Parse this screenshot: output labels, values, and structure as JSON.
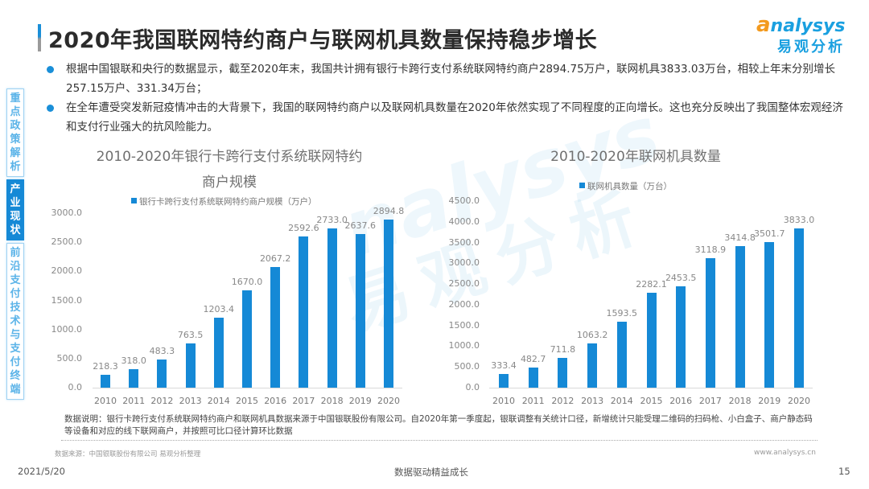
{
  "header": {
    "title": "2020年我国联网特约商户与联网机具数量保持稳步增长",
    "logo_en": "nalysys",
    "logo_en_prefix": "a",
    "logo_cn": "易观分析"
  },
  "bullets": [
    "根据中国银联和央行的数据显示，截至2020年末，我国共计拥有银行卡跨行支付系统联网特约商户2894.75万户，联网机具3833.03万台，相较上年末分别增长257.15万户、331.34万台；",
    "在全年遭受突发新冠疫情冲击的大背景下，我国的联网特约商户以及联网机具数量在2020年依然实现了不同程度的正向增长。这也充分反映出了我国整体宏观经济和支付行业强大的抗风险能力。"
  ],
  "sidenav": {
    "items": [
      {
        "label": "重点政策解析",
        "active": false
      },
      {
        "label": "产业现状",
        "active": true
      },
      {
        "label": "前沿支付技术与支付终端",
        "active": false
      }
    ]
  },
  "watermark": {
    "en": "nalysys",
    "cn": "易观分析"
  },
  "colors": {
    "bar": "#1589d6",
    "accent": "#1a8fd8",
    "logo_orange": "#f39a1e"
  },
  "chart_data": [
    {
      "type": "bar",
      "title": "2010-2020年银行卡跨行支付系统联网特约商户规模",
      "title_line1": "2010-2020年银行卡跨行支付系统联网特约",
      "title_line2": "商户规模",
      "legend": "银行卡跨行支付系统联网特约商户规模（万户）",
      "categories": [
        "2010",
        "2011",
        "2012",
        "2013",
        "2014",
        "2015",
        "2016",
        "2017",
        "2018",
        "2019",
        "2020"
      ],
      "values": [
        218.3,
        318.0,
        483.3,
        763.5,
        1203.4,
        1670.0,
        2067.2,
        2592.6,
        2733.0,
        2637.6,
        2894.8
      ],
      "value_labels": [
        "218.3",
        "318.0",
        "483.3",
        "763.5",
        "1203.4",
        "1670.0",
        "2067.2",
        "2592.6",
        "2733.0",
        "2637.6",
        "2894.8"
      ],
      "yticks": [
        "0.0",
        "500.0",
        "1000.0",
        "1500.0",
        "2000.0",
        "2500.0",
        "3000.0"
      ],
      "ylim": [
        0,
        3000
      ],
      "xlabel": "",
      "ylabel": "",
      "grid": false,
      "legend_position": "top"
    },
    {
      "type": "bar",
      "title": "2010-2020年联网机具数量",
      "legend": "联网机具数量（万台）",
      "categories": [
        "2010",
        "2011",
        "2012",
        "2013",
        "2014",
        "2015",
        "2016",
        "2017",
        "2018",
        "2019",
        "2020"
      ],
      "values": [
        333.4,
        482.7,
        711.8,
        1063.2,
        1593.5,
        2282.1,
        2453.5,
        3118.9,
        3414.8,
        3501.7,
        3833.0
      ],
      "value_labels": [
        "333.4",
        "482.7",
        "711.8",
        "1063.2",
        "1593.5",
        "2282.1",
        "2453.5",
        "3118.9",
        "3414.8",
        "3501.7",
        "3833.0"
      ],
      "yticks": [
        "0.0",
        "500.0",
        "1000.0",
        "1500.0",
        "2000.0",
        "2500.0",
        "3000.0",
        "3500.0",
        "4000.0",
        "4500.0"
      ],
      "ylim": [
        0,
        4500
      ],
      "xlabel": "",
      "ylabel": "",
      "grid": false,
      "legend_position": "top"
    }
  ],
  "note": "数据说明：银行卡跨行支付系统联网特约商户和联网机具数据来源于中国银联股份有限公司。自2020年第一季度起，银联调整有关统计口径，新增统计只能受理二维码的扫码枪、小白盒子、商户静态码等设备和对应的线下联网商户，并按照可比口径计算环比数据",
  "source": "数据来源：中国银联股份有限公司 易观分析整理",
  "site": "www.analysys.cn",
  "footer": {
    "date": "2021/5/20",
    "slogan": "数据驱动精益成长",
    "page": "15"
  }
}
